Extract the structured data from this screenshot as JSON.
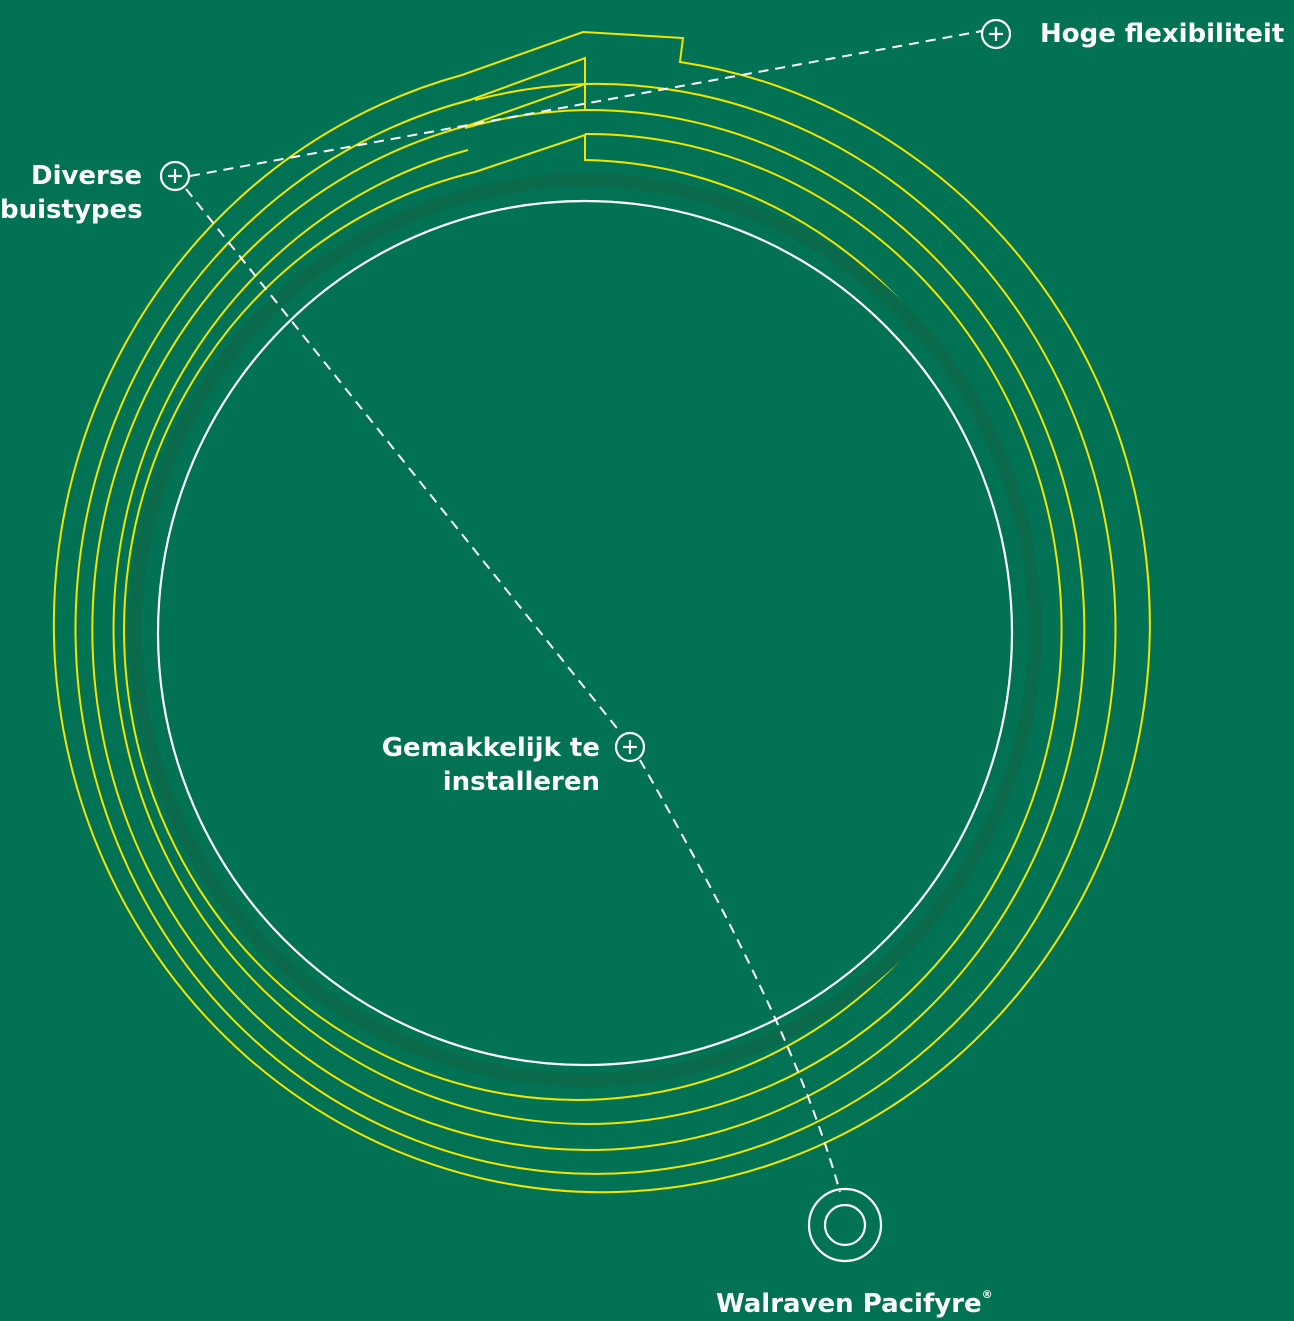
{
  "colors": {
    "background": "#017354",
    "coil": "#f2e500",
    "annotation": "#ffffff"
  },
  "icons": {
    "hotspot": "plus-circle-icon",
    "product": "target-circle-icon"
  },
  "hotspots": [
    {
      "label": "Hoge flexibiliteit"
    },
    {
      "label_line1": "Diverse",
      "label_line2": "buistypes"
    },
    {
      "label_line1": "Gemakkelijk te",
      "label_line2": "installeren"
    }
  ],
  "product": {
    "name": "Walraven Pacifyre",
    "mark": "®"
  }
}
